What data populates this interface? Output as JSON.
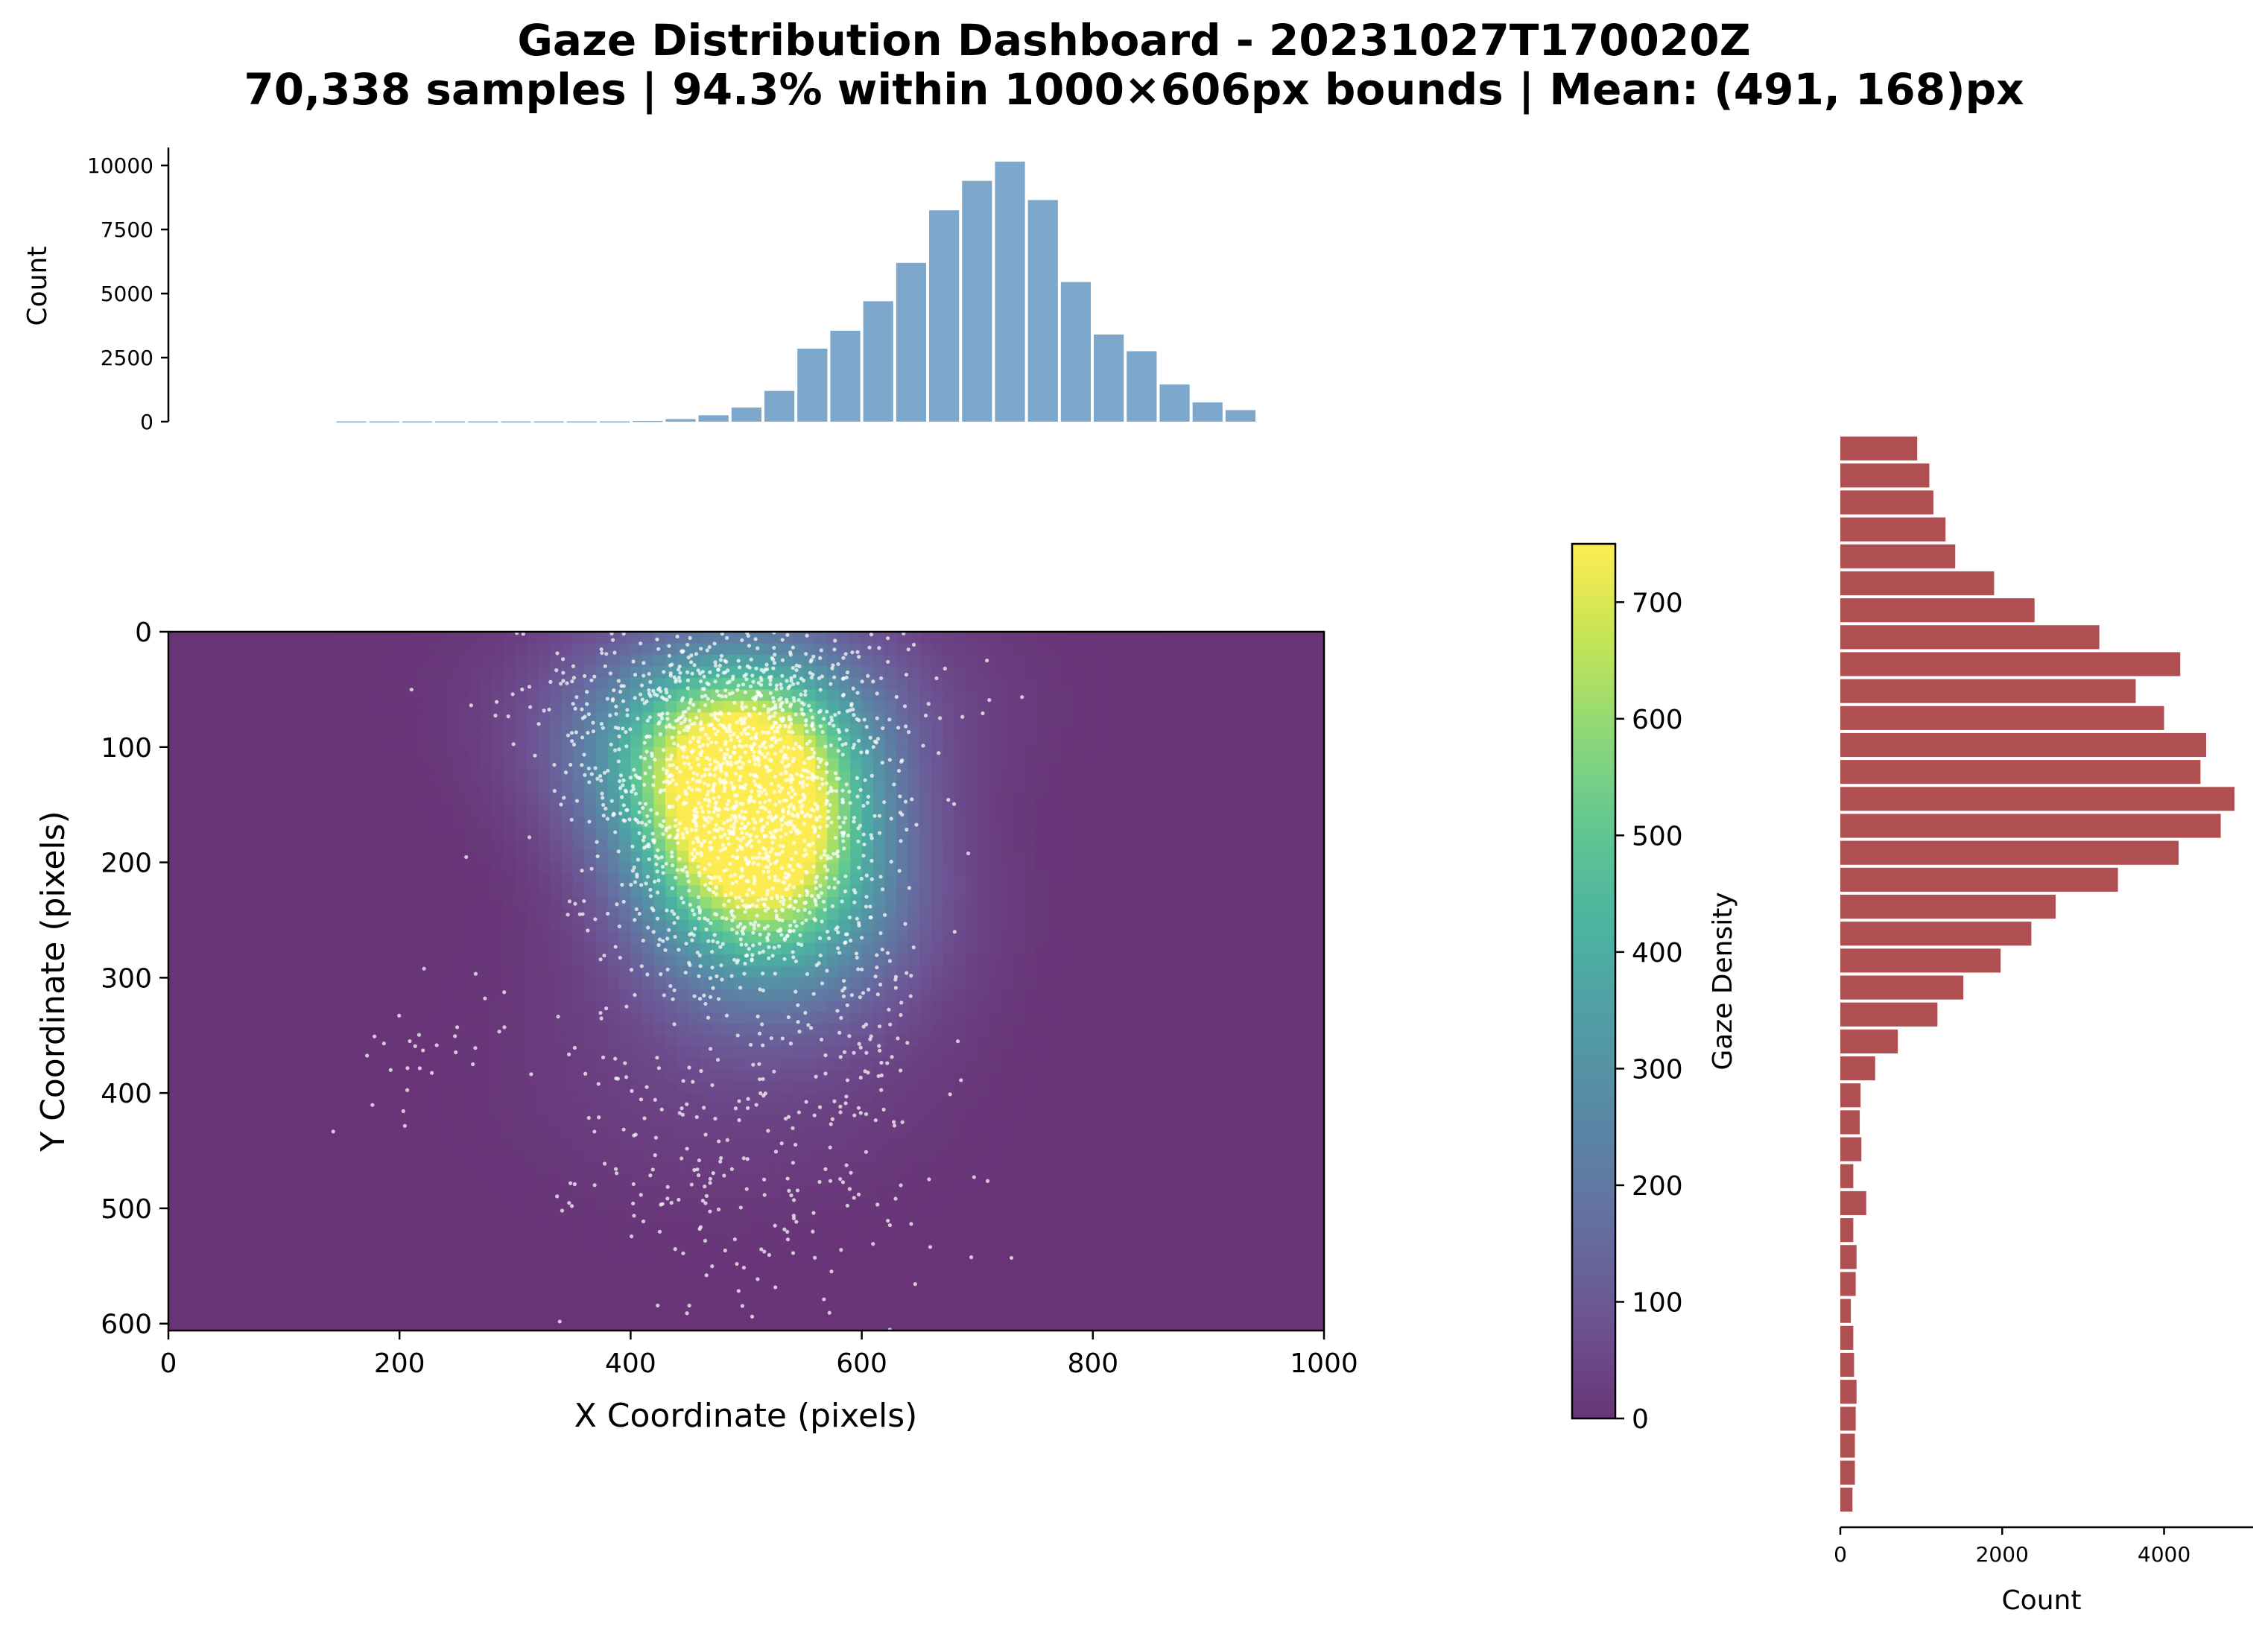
{
  "figure": {
    "title_line1": "Gaze Distribution Dashboard - 20231027T170020Z",
    "title_line2": "70,338 samples | 94.3% within 1000×606px bounds | Mean: (491, 168)px"
  },
  "chart_data": [
    {
      "id": "heatmap",
      "type": "heatmap",
      "title": "",
      "xlabel": "X Coordinate (pixels)",
      "ylabel": "Y Coordinate (pixels)",
      "xlim": [
        0,
        1000
      ],
      "ylim": [
        606,
        0
      ],
      "y_inverted": true,
      "xticks": [
        0,
        200,
        400,
        600,
        800,
        1000
      ],
      "yticks": [
        0,
        100,
        200,
        300,
        400,
        500,
        600
      ],
      "background_value": 0,
      "density_blobs": [
        {
          "cx": 505,
          "cy": 165,
          "sx": 65,
          "sy": 75,
          "peak": 735
        },
        {
          "cx": 470,
          "cy": 110,
          "sx": 80,
          "sy": 60,
          "peak": 330
        },
        {
          "cx": 540,
          "cy": 240,
          "sx": 85,
          "sy": 70,
          "peak": 220
        },
        {
          "cx": 500,
          "cy": 60,
          "sx": 120,
          "sy": 60,
          "peak": 130
        },
        {
          "cx": 480,
          "cy": 380,
          "sx": 120,
          "sy": 80,
          "peak": 40
        }
      ],
      "scatter_clusters": [
        {
          "cx": 500,
          "cy": 160,
          "sx": 60,
          "sy": 75,
          "n": 1400
        },
        {
          "cx": 480,
          "cy": 60,
          "sx": 90,
          "sy": 40,
          "n": 400
        },
        {
          "cx": 500,
          "cy": 450,
          "sx": 80,
          "sy": 80,
          "n": 240
        },
        {
          "cx": 220,
          "cy": 360,
          "sx": 60,
          "sy": 40,
          "n": 30
        },
        {
          "cx": 600,
          "cy": 320,
          "sx": 30,
          "sy": 60,
          "n": 70
        }
      ]
    },
    {
      "id": "colorbar",
      "type": "colorbar",
      "label": "Gaze Density",
      "range": [
        0,
        750
      ],
      "ticks": [
        0,
        100,
        200,
        300,
        400,
        500,
        600,
        700
      ],
      "colormap": "viridis",
      "alpha": 0.8
    },
    {
      "id": "x_histogram",
      "type": "bar",
      "ylabel": "Count",
      "ylim": [
        0,
        10700
      ],
      "yticks": [
        0,
        2500,
        5000,
        7500,
        10000
      ],
      "bin_width": 28.5,
      "bin_starts": [
        144,
        172.5,
        201,
        229.5,
        258,
        286.5,
        315,
        343.5,
        372,
        400.5,
        429,
        457.5,
        486,
        514.5,
        543,
        571.5,
        600,
        628.5,
        657,
        685.5,
        714,
        742.5,
        771,
        799.5,
        828,
        856.5,
        885,
        913.5
      ],
      "values": [
        10,
        10,
        10,
        10,
        10,
        10,
        10,
        10,
        10,
        30,
        100,
        250,
        550,
        1200,
        2850,
        3550,
        4700,
        6200,
        8250,
        9400,
        10150,
        8650,
        5450,
        3400,
        2750,
        1450,
        750,
        450
      ],
      "color": "#7ea7cc"
    },
    {
      "id": "y_histogram",
      "type": "bar",
      "orientation": "horizontal",
      "xlabel": "Count",
      "xlim": [
        0,
        5100
      ],
      "xticks": [
        0,
        2000,
        4000
      ],
      "y_range": [
        -150,
        620
      ],
      "bin_height": 19,
      "bin_starts": [
        -150,
        -131,
        -112,
        -93,
        -74,
        -55,
        -36,
        -17,
        2,
        21,
        40,
        59,
        78,
        97,
        116,
        135,
        154,
        173,
        192,
        211,
        230,
        249,
        268,
        287,
        306,
        325,
        344,
        363,
        382,
        401,
        420,
        439,
        458,
        477,
        496,
        515,
        534,
        553,
        572,
        591
      ],
      "values": [
        950,
        1100,
        1150,
        1300,
        1420,
        1900,
        2400,
        3200,
        4200,
        3650,
        4000,
        4520,
        4450,
        4870,
        4700,
        4180,
        3430,
        2660,
        2360,
        1980,
        1520,
        1200,
        710,
        430,
        250,
        240,
        260,
        160,
        320,
        160,
        200,
        190,
        130,
        160,
        170,
        200,
        190,
        180,
        180,
        150
      ],
      "color": "#b04f52"
    }
  ]
}
